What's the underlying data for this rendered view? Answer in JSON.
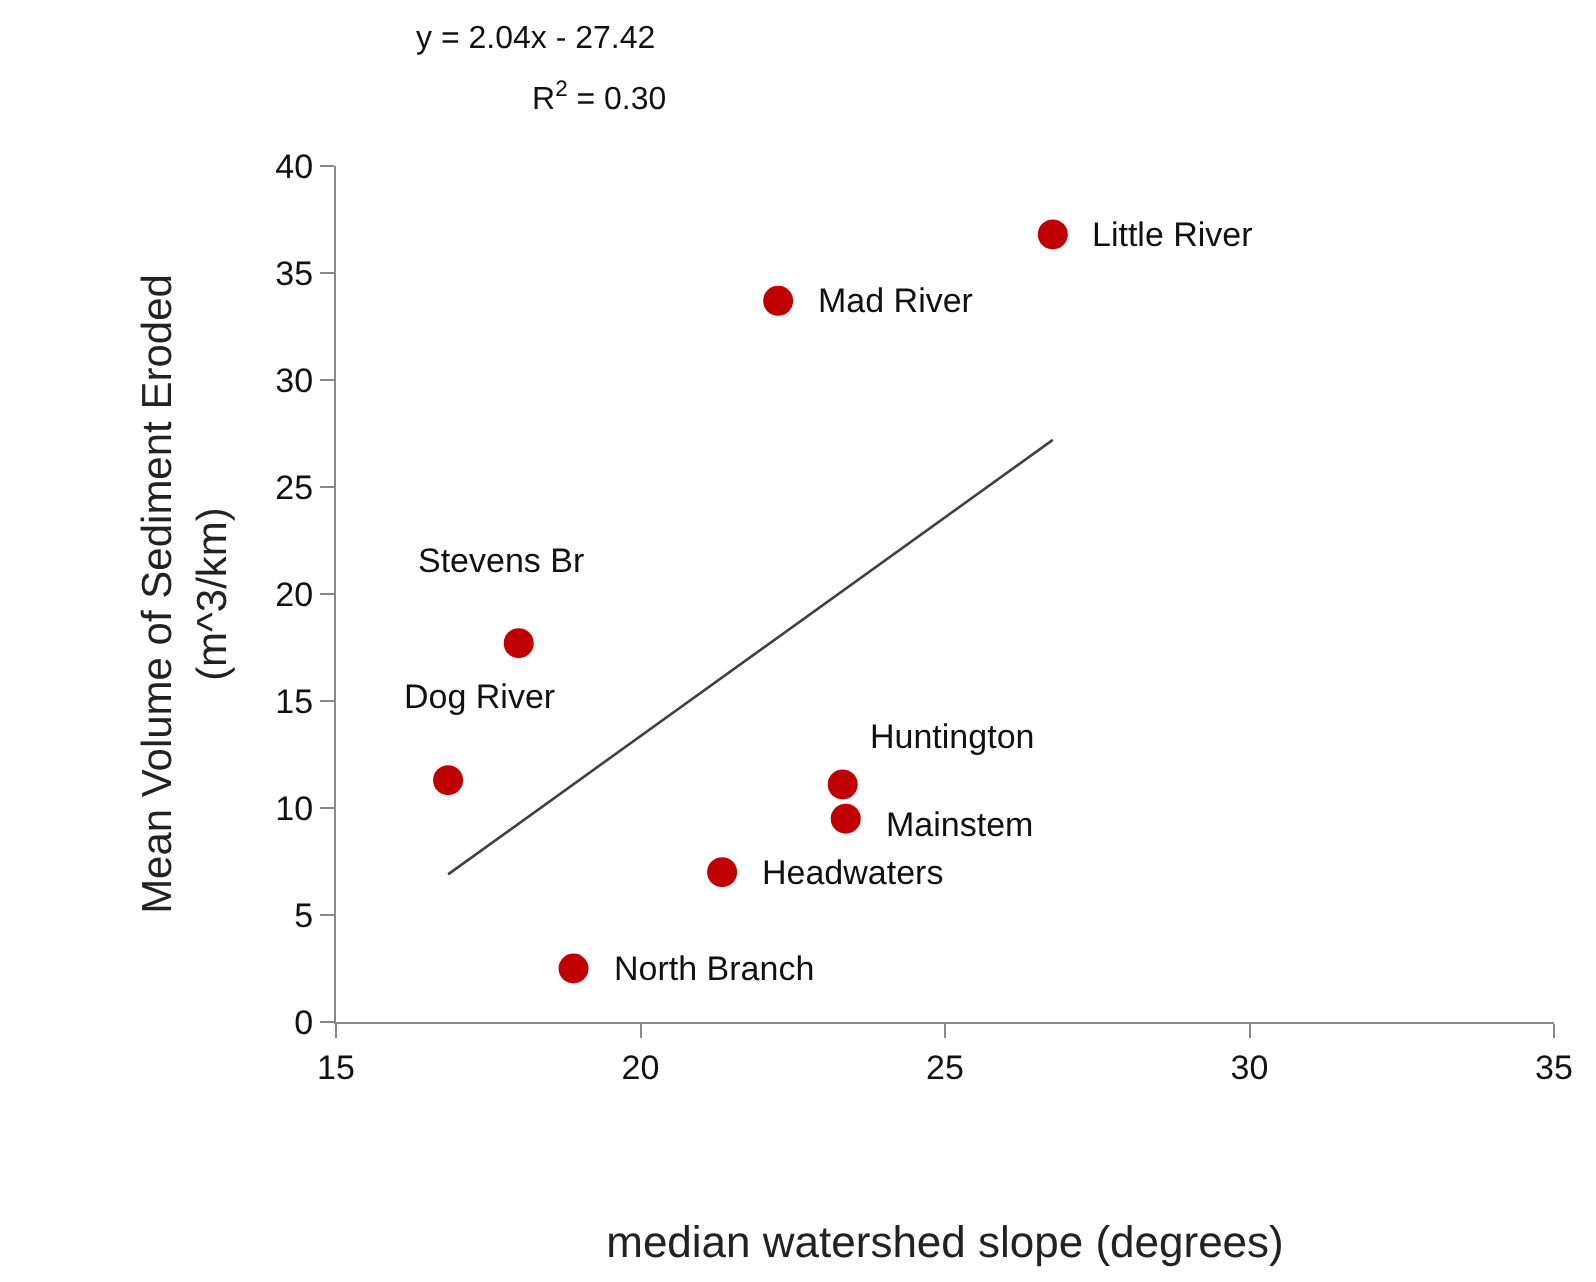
{
  "chart_data": {
    "type": "scatter",
    "xlabel": "median watershed slope (degrees)",
    "ylabel": "Mean Volume of Sediment Eroded\n(m^3/km)",
    "xlim": [
      15,
      35
    ],
    "xticks": [
      15,
      20,
      25,
      30,
      35
    ],
    "ylim": [
      0,
      40
    ],
    "yticks": [
      0,
      5,
      10,
      15,
      20,
      25,
      30,
      35,
      40
    ],
    "series": [
      {
        "marker": "circle",
        "color": "#c00000",
        "x": [
          26.77,
          22.26,
          18.0,
          16.84,
          23.32,
          23.37,
          21.34,
          18.9
        ],
        "values": [
          36.8,
          33.7,
          17.7,
          11.3,
          11.1,
          9.5,
          7.0,
          2.5
        ]
      },
      {
        "type": "line",
        "color": "#404040",
        "x": [
          16.84,
          26.77
        ],
        "values": [
          6.9,
          27.2
        ]
      }
    ],
    "annotations": [
      "y = 2.04x - 27.42",
      "R$^{2}$ = 0.30",
      {
        "text": "Little River",
        "x": 26.77,
        "y": 36.8
      },
      {
        "text": "Mad River",
        "x": 22.26,
        "y": 33.7
      },
      {
        "text": "Stevens Br",
        "x": 18.0,
        "y": 17.7
      },
      {
        "text": "Dog River",
        "x": 16.84,
        "y": 11.3
      },
      {
        "text": "Huntington",
        "x": 23.32,
        "y": 11.1
      },
      {
        "text": "Mainstem",
        "x": 23.37,
        "y": 9.5
      },
      {
        "text": "Headwaters",
        "x": 21.34,
        "y": 7.0
      },
      {
        "text": "North Branch",
        "x": 18.9,
        "y": 2.5
      }
    ]
  }
}
